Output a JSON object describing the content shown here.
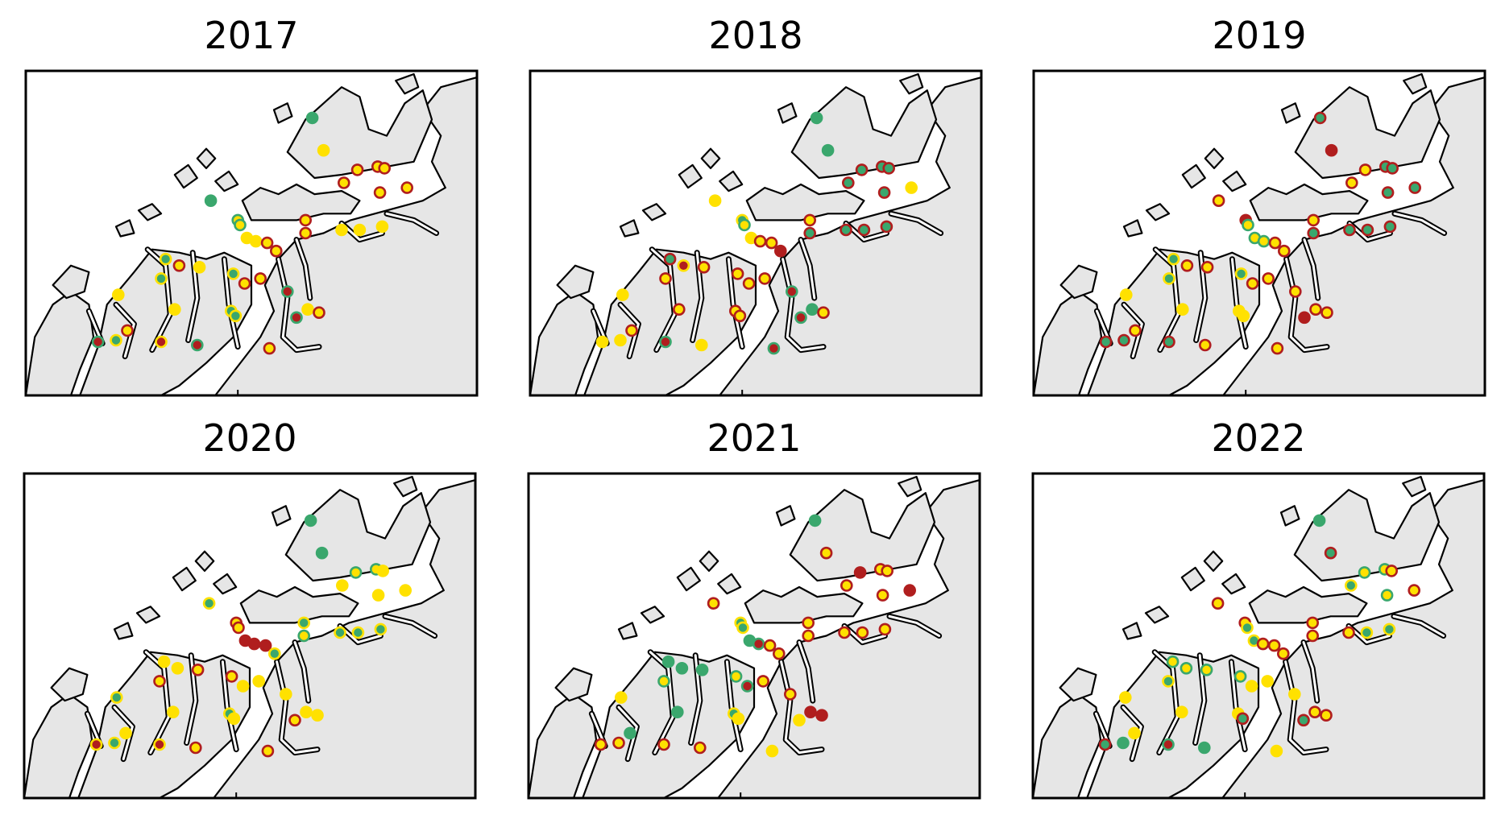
{
  "colors": {
    "green": "#3aa76d",
    "yellow": "#ffe100",
    "red": "#b01e1e",
    "land": "#e6e6e6",
    "water": "#ffffff"
  },
  "panels": [
    {
      "title": "2017",
      "sites": [
        [
          "g",
          "g"
        ],
        [
          "y",
          "y"
        ],
        [
          "y",
          "r"
        ],
        [
          "y",
          "r"
        ],
        [
          "y",
          "r"
        ],
        [
          "y",
          "r"
        ],
        [
          "y",
          "r"
        ],
        [
          "y",
          "r"
        ],
        [
          "g",
          "g"
        ],
        [
          "y",
          "g"
        ],
        [
          "y",
          "g"
        ],
        [
          "y",
          "y"
        ],
        [
          "y",
          "y"
        ],
        [
          "y",
          "r"
        ],
        [
          "y",
          "r"
        ],
        [
          "y",
          "r"
        ],
        [
          "y",
          "r"
        ],
        [
          "y",
          "y"
        ],
        [
          "y",
          "y"
        ],
        [
          "y",
          "y"
        ],
        [
          "g",
          "y"
        ],
        [
          "y",
          "r"
        ],
        [
          "y",
          "y"
        ],
        [
          "g",
          "y"
        ],
        [
          "g",
          "y"
        ],
        [
          "y",
          "r"
        ],
        [
          "y",
          "r"
        ],
        [
          "r",
          "g"
        ],
        [
          "y",
          "y"
        ],
        [
          "y",
          "r"
        ],
        [
          "y",
          "y"
        ],
        [
          "g",
          "y"
        ],
        [
          "g",
          "y"
        ],
        [
          "r",
          "g"
        ],
        [
          "y",
          "y"
        ],
        [
          "y",
          "r"
        ],
        [
          "g",
          "y"
        ],
        [
          "r",
          "g"
        ],
        [
          "r",
          "y"
        ],
        [
          "r",
          "g"
        ],
        [
          "y",
          "r"
        ]
      ]
    },
    {
      "title": "2018",
      "sites": [
        [
          "g",
          "g"
        ],
        [
          "g",
          "g"
        ],
        [
          "g",
          "r"
        ],
        [
          "g",
          "r"
        ],
        [
          "g",
          "r"
        ],
        [
          "g",
          "r"
        ],
        [
          "g",
          "r"
        ],
        [
          "y",
          "y"
        ],
        [
          "y",
          "y"
        ],
        [
          "g",
          "y"
        ],
        [
          "y",
          "g"
        ],
        [
          "y",
          "y"
        ],
        [
          "y",
          "r"
        ],
        [
          "y",
          "r"
        ],
        [
          "r",
          "r"
        ],
        [
          "y",
          "r"
        ],
        [
          "g",
          "r"
        ],
        [
          "g",
          "r"
        ],
        [
          "g",
          "r"
        ],
        [
          "g",
          "r"
        ],
        [
          "g",
          "r"
        ],
        [
          "r",
          "y"
        ],
        [
          "y",
          "r"
        ],
        [
          "y",
          "r"
        ],
        [
          "y",
          "r"
        ],
        [
          "y",
          "r"
        ],
        [
          "y",
          "r"
        ],
        [
          "r",
          "g"
        ],
        [
          "y",
          "y"
        ],
        [
          "y",
          "r"
        ],
        [
          "y",
          "r"
        ],
        [
          "y",
          "r"
        ],
        [
          "y",
          "r"
        ],
        [
          "r",
          "g"
        ],
        [
          "g",
          "g"
        ],
        [
          "y",
          "r"
        ],
        [
          "y",
          "y"
        ],
        [
          "y",
          "y"
        ],
        [
          "r",
          "g"
        ],
        [
          "y",
          "y"
        ],
        [
          "r",
          "g"
        ],
        [
          "g",
          "g"
        ]
      ]
    },
    {
      "title": "2019",
      "sites": [
        [
          "g",
          "r"
        ],
        [
          "r",
          "r"
        ],
        [
          "y",
          "r"
        ],
        [
          "g",
          "r"
        ],
        [
          "g",
          "r"
        ],
        [
          "y",
          "r"
        ],
        [
          "g",
          "r"
        ],
        [
          "g",
          "r"
        ],
        [
          "y",
          "r"
        ],
        [
          "r",
          "r"
        ],
        [
          "y",
          "g"
        ],
        [
          "y",
          "g"
        ],
        [
          "y",
          "g"
        ],
        [
          "y",
          "r"
        ],
        [
          "y",
          "r"
        ],
        [
          "y",
          "r"
        ],
        [
          "g",
          "r"
        ],
        [
          "g",
          "r"
        ],
        [
          "g",
          "r"
        ],
        [
          "g",
          "r"
        ],
        [
          "g",
          "y"
        ],
        [
          "y",
          "r"
        ],
        [
          "y",
          "r"
        ],
        [
          "g",
          "y"
        ],
        [
          "g",
          "y"
        ],
        [
          "y",
          "r"
        ],
        [
          "y",
          "r"
        ],
        [
          "y",
          "r"
        ],
        [
          "y",
          "y"
        ],
        [
          "y",
          "r"
        ],
        [
          "y",
          "y"
        ],
        [
          "y",
          "y"
        ],
        [
          "y",
          "y"
        ],
        [
          "r",
          "r"
        ],
        [
          "y",
          "r"
        ],
        [
          "y",
          "r"
        ],
        [
          "g",
          "r"
        ],
        [
          "g",
          "r"
        ],
        [
          "g",
          "r"
        ],
        [
          "y",
          "r"
        ],
        [
          "y",
          "r"
        ]
      ]
    },
    {
      "title": "2020",
      "sites": [
        [
          "g",
          "g"
        ],
        [
          "g",
          "g"
        ],
        [
          "y",
          "g"
        ],
        [
          "y",
          "g"
        ],
        [
          "y",
          "y"
        ],
        [
          "y",
          "y"
        ],
        [
          "y",
          "y"
        ],
        [
          "y",
          "y"
        ],
        [
          "g",
          "y"
        ],
        [
          "y",
          "r"
        ],
        [
          "y",
          "r"
        ],
        [
          "r",
          "r"
        ],
        [
          "r",
          "r"
        ],
        [
          "r",
          "r"
        ],
        [
          "g",
          "y"
        ],
        [
          "g",
          "y"
        ],
        [
          "y",
          "g"
        ],
        [
          "g",
          "y"
        ],
        [
          "g",
          "y"
        ],
        [
          "g",
          "y"
        ],
        [
          "y",
          "y"
        ],
        [
          "y",
          "y"
        ],
        [
          "y",
          "r"
        ],
        [
          "y",
          "r"
        ],
        [
          "y",
          "r"
        ],
        [
          "y",
          "y"
        ],
        [
          "y",
          "y"
        ],
        [
          "y",
          "y"
        ],
        [
          "g",
          "y"
        ],
        [
          "y",
          "y"
        ],
        [
          "y",
          "y"
        ],
        [
          "g",
          "y"
        ],
        [
          "y",
          "y"
        ],
        [
          "y",
          "r"
        ],
        [
          "y",
          "y"
        ],
        [
          "y",
          "y"
        ],
        [
          "g",
          "y"
        ],
        [
          "r",
          "y"
        ],
        [
          "r",
          "y"
        ],
        [
          "y",
          "r"
        ],
        [
          "y",
          "r"
        ]
      ]
    },
    {
      "title": "2021",
      "sites": [
        [
          "g",
          "g"
        ],
        [
          "y",
          "r"
        ],
        [
          "r",
          "r"
        ],
        [
          "y",
          "r"
        ],
        [
          "y",
          "r"
        ],
        [
          "y",
          "r"
        ],
        [
          "y",
          "r"
        ],
        [
          "r",
          "r"
        ],
        [
          "y",
          "r"
        ],
        [
          "g",
          "y"
        ],
        [
          "g",
          "y"
        ],
        [
          "g",
          "g"
        ],
        [
          "r",
          "g"
        ],
        [
          "y",
          "r"
        ],
        [
          "y",
          "r"
        ],
        [
          "y",
          "r"
        ],
        [
          "y",
          "r"
        ],
        [
          "y",
          "r"
        ],
        [
          "y",
          "r"
        ],
        [
          "y",
          "r"
        ],
        [
          "g",
          "g"
        ],
        [
          "g",
          "g"
        ],
        [
          "g",
          "g"
        ],
        [
          "y",
          "g"
        ],
        [
          "y",
          "g"
        ],
        [
          "r",
          "g"
        ],
        [
          "y",
          "r"
        ],
        [
          "y",
          "r"
        ],
        [
          "y",
          "y"
        ],
        [
          "g",
          "g"
        ],
        [
          "g",
          "g"
        ],
        [
          "g",
          "y"
        ],
        [
          "y",
          "y"
        ],
        [
          "y",
          "y"
        ],
        [
          "r",
          "r"
        ],
        [
          "r",
          "r"
        ],
        [
          "y",
          "r"
        ],
        [
          "y",
          "r"
        ],
        [
          "y",
          "r"
        ],
        [
          "y",
          "r"
        ],
        [
          "y",
          "y"
        ]
      ]
    },
    {
      "title": "2022",
      "sites": [
        [
          "g",
          "g"
        ],
        [
          "g",
          "r"
        ],
        [
          "y",
          "g"
        ],
        [
          "y",
          "g"
        ],
        [
          "y",
          "r"
        ],
        [
          "g",
          "y"
        ],
        [
          "y",
          "g"
        ],
        [
          "y",
          "r"
        ],
        [
          "y",
          "r"
        ],
        [
          "y",
          "r"
        ],
        [
          "g",
          "y"
        ],
        [
          "g",
          "y"
        ],
        [
          "y",
          "r"
        ],
        [
          "y",
          "r"
        ],
        [
          "y",
          "r"
        ],
        [
          "y",
          "r"
        ],
        [
          "y",
          "r"
        ],
        [
          "y",
          "r"
        ],
        [
          "g",
          "y"
        ],
        [
          "g",
          "y"
        ],
        [
          "y",
          "g"
        ],
        [
          "y",
          "g"
        ],
        [
          "y",
          "g"
        ],
        [
          "g",
          "y"
        ],
        [
          "y",
          "g"
        ],
        [
          "y",
          "y"
        ],
        [
          "y",
          "y"
        ],
        [
          "y",
          "y"
        ],
        [
          "y",
          "y"
        ],
        [
          "y",
          "y"
        ],
        [
          "y",
          "y"
        ],
        [
          "y",
          "y"
        ],
        [
          "g",
          "r"
        ],
        [
          "g",
          "r"
        ],
        [
          "y",
          "r"
        ],
        [
          "y",
          "r"
        ],
        [
          "g",
          "g"
        ],
        [
          "g",
          "r"
        ],
        [
          "r",
          "g"
        ],
        [
          "g",
          "g"
        ],
        [
          "y",
          "y"
        ]
      ]
    }
  ]
}
